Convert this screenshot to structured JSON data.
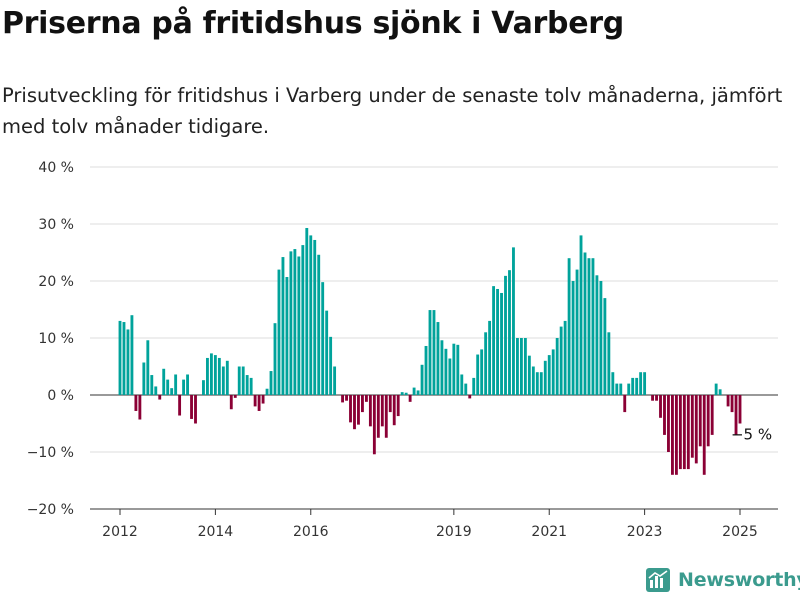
{
  "title": "Priserna på fritidshus sjönk i Varberg",
  "subtitle": "Prisutveckling för fritidshus i Varberg under de senaste tolv månaderna, jämfört med tolv månader tidigare.",
  "brand": {
    "name": "Newsworthy",
    "color": "#3b9b8e"
  },
  "colors": {
    "positive": "#00a39b",
    "negative": "#8b0035",
    "grid": "#dddddd",
    "axis": "#333333"
  },
  "chart_data": {
    "type": "bar",
    "title": "Priserna på fritidshus sjönk i Varberg",
    "xlabel": "",
    "ylabel": "",
    "ylim": [
      -20,
      40
    ],
    "y_ticks": [
      {
        "value": 40,
        "label": "40 %"
      },
      {
        "value": 30,
        "label": "30 %"
      },
      {
        "value": 20,
        "label": "20 %"
      },
      {
        "value": 10,
        "label": "10 %"
      },
      {
        "value": 0,
        "label": "0 %"
      },
      {
        "value": -10,
        "label": "−10 %"
      },
      {
        "value": -20,
        "label": "−20 %"
      }
    ],
    "x_ticks": [
      {
        "date": "2012-01",
        "label": "2012"
      },
      {
        "date": "2014-01",
        "label": "2014"
      },
      {
        "date": "2016-01",
        "label": "2016"
      },
      {
        "date": "2019-01",
        "label": "2019"
      },
      {
        "date": "2021-01",
        "label": "2021"
      },
      {
        "date": "2023-01",
        "label": "2023"
      },
      {
        "date": "2025-01",
        "label": "2025"
      }
    ],
    "grid": true,
    "legend": "none",
    "annotation": {
      "label": "−5 %",
      "date": "2025-02"
    },
    "series": [
      {
        "start": "2012-01",
        "values": [
          13,
          12.8,
          11.5,
          14,
          -2.8,
          -4.3,
          5.7,
          9.6,
          3.5,
          1.5,
          -0.8,
          4.6,
          2.7,
          1.2,
          3.6,
          -3.6,
          2.7,
          3.6,
          -4.2,
          -5,
          0,
          2.6,
          6.5,
          7.3,
          7,
          6.5,
          5,
          6,
          -2.5,
          -0.5,
          5,
          5,
          3.5,
          3,
          -2,
          -2.8,
          -1.5,
          1.1,
          4.2,
          12.6,
          22,
          24.2,
          20.7,
          25.2,
          25.6,
          24.3,
          26.3,
          29.3,
          28,
          27.2,
          24.6,
          19.8,
          14.8,
          10.2,
          5,
          0,
          -1.3,
          -1,
          -4.8,
          -6,
          -5.2,
          -3,
          -1.2,
          -5.5,
          -10.4,
          -7.5,
          -5.5,
          -7.5,
          -3,
          -5.3,
          -3.7,
          0.5,
          0.4,
          -1.2,
          1.3,
          0.8,
          5.3,
          8.6,
          14.9,
          14.9,
          12.8,
          9.6,
          8.1,
          6.4,
          9,
          8.8,
          3.6,
          2,
          -0.6,
          3,
          7.1,
          8,
          11,
          13,
          19.1,
          18.6,
          17.9,
          20.9,
          21.9,
          25.9,
          10,
          10,
          10,
          6.9,
          5,
          4,
          4,
          6,
          7,
          8,
          10,
          12,
          13,
          24,
          20,
          22,
          28,
          25,
          24,
          24,
          21,
          20,
          17,
          11,
          4,
          2,
          2,
          -3,
          2,
          3,
          3,
          4,
          4,
          0,
          -1,
          -1,
          -4,
          -7,
          -10,
          -14,
          -14,
          -13,
          -13,
          -13,
          -11,
          -12,
          -9,
          -14,
          -9,
          -7,
          2,
          1,
          0,
          -2,
          -3,
          -7,
          -5
        ]
      }
    ]
  }
}
